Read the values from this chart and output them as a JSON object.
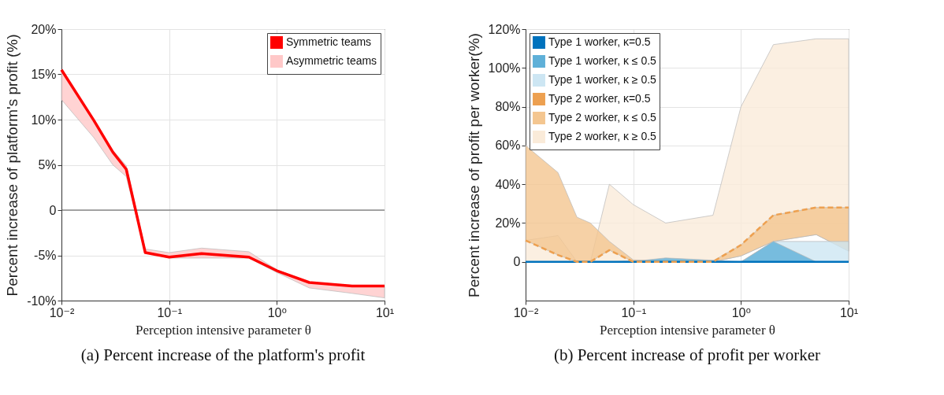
{
  "chart_data": [
    {
      "type": "line",
      "title": "(a) Percent increase of the platform's profit",
      "xlabel": "Perception intensive parameter θ",
      "ylabel": "Percent increase of platform's profit (%)",
      "x": [
        0.01,
        0.02,
        0.03,
        0.04,
        0.06,
        0.1,
        0.2,
        0.55,
        1,
        2,
        5,
        10
      ],
      "series": [
        {
          "name": "Symmetric teams",
          "color": "#ff0000",
          "values": [
            15.5,
            9.9,
            6.4,
            4.5,
            -4.7,
            -5.2,
            -4.8,
            -5.2,
            -6.7,
            -8.0,
            -8.4,
            -8.4
          ]
        },
        {
          "name": "Asymmetric teams",
          "color": "#ffc8c8",
          "values": [
            null,
            null,
            null,
            null,
            null,
            null,
            null,
            null,
            null,
            null,
            null,
            null
          ],
          "lower": [
            12.2,
            8.0,
            5.0,
            3.7,
            -4.7,
            -5.3,
            -5.3,
            -5.3,
            -6.9,
            -8.6,
            -9.2,
            -9.7
          ],
          "upper": [
            15.5,
            9.9,
            6.6,
            4.9,
            -4.3,
            -4.7,
            -4.2,
            -4.6,
            -6.6,
            -8.0,
            -8.4,
            -8.4
          ]
        }
      ],
      "log": "x",
      "xlim": [
        0.01,
        10
      ],
      "ylim": [
        -10,
        20
      ],
      "xticks": [
        {
          "value": 0.01,
          "label": "10⁻²"
        },
        {
          "value": 0.1,
          "label": "10⁻¹"
        },
        {
          "value": 1,
          "label": "10⁰"
        },
        {
          "value": 10,
          "label": "10¹"
        }
      ],
      "yticks": [
        {
          "value": -10,
          "label": "-10%"
        },
        {
          "value": -5,
          "label": "-5%"
        },
        0,
        {
          "value": 5,
          "label": "5%"
        },
        {
          "value": 10,
          "label": "10%"
        },
        {
          "value": 15,
          "label": "15%"
        },
        {
          "value": 20,
          "label": "20%"
        }
      ],
      "ref_lines": [
        {
          "axis": "y",
          "value": 0,
          "label": null,
          "color": "#555555"
        }
      ],
      "grid": true,
      "legend": "top right",
      "line_style": "solid",
      "marker": "none"
    },
    {
      "type": "line",
      "title": "(b) Percent increase of profit per worker",
      "xlabel": "Perception intensive parameter θ",
      "ylabel": "Percent increase of profit per worker(%)",
      "x": [
        0.01,
        0.02,
        0.03,
        0.04,
        0.06,
        0.1,
        0.2,
        0.55,
        1,
        2,
        5,
        10
      ],
      "series": [
        {
          "name": "Type 1 worker, κ=0.5",
          "color": "#0072bd",
          "line_style": "solid",
          "values": [
            0,
            0,
            0,
            0,
            0,
            0,
            0,
            0,
            0,
            0,
            0,
            0
          ]
        },
        {
          "name": "Type 1 worker, κ ≤ 0.5",
          "color": "#5fb0d8",
          "values": [
            null,
            null,
            null,
            null,
            null,
            null,
            null,
            null,
            null,
            null,
            null,
            null
          ],
          "lower": [
            0,
            0,
            0,
            0,
            0,
            0,
            0,
            0,
            0,
            0,
            0,
            0
          ],
          "upper": [
            0,
            0,
            0,
            0,
            0,
            0.2,
            2,
            0.8,
            0,
            10.5,
            0,
            0
          ]
        },
        {
          "name": "Type 1 worker, κ ≥ 0.5",
          "color": "#cde6f3",
          "values": [
            null,
            null,
            null,
            null,
            null,
            null,
            null,
            null,
            null,
            null,
            null,
            null
          ],
          "lower": [
            null,
            null,
            null,
            null,
            null,
            null,
            null,
            null,
            0,
            0,
            0,
            0
          ],
          "upper": [
            null,
            null,
            null,
            null,
            null,
            null,
            null,
            null,
            0,
            10.5,
            10.5,
            10.5
          ]
        },
        {
          "name": "Type 2 worker, κ=0.5",
          "color": "#eda050",
          "line_style": "dashed",
          "values": [
            11,
            3.5,
            0,
            0,
            6,
            0,
            0,
            0,
            8.7,
            24,
            28,
            28
          ]
        },
        {
          "name": "Type 2 worker, κ ≤ 0.5",
          "color": "#f4c690",
          "values": [
            null,
            null,
            null,
            null,
            null,
            null,
            null,
            null,
            null,
            null,
            null,
            null
          ],
          "lower": [
            11,
            3.5,
            0,
            0,
            6,
            0,
            0,
            0,
            3,
            10.5,
            14,
            5.5
          ],
          "upper": [
            60,
            46,
            23,
            20,
            10.5,
            1,
            0.5,
            0.5,
            8.7,
            24,
            28,
            28
          ]
        },
        {
          "name": "Type 2 worker, κ ≥ 0.5",
          "color": "#faebd9",
          "values": [
            null,
            null,
            null,
            null,
            null,
            null,
            null,
            null,
            null,
            null,
            null,
            null
          ],
          "lower": [
            0,
            0,
            0,
            0,
            0,
            0.5,
            0,
            0,
            3,
            10.5,
            14,
            5.5
          ],
          "upper": [
            11,
            13.5,
            0,
            0,
            40,
            29.5,
            20,
            24,
            80,
            112,
            115,
            115
          ]
        }
      ],
      "log": "x",
      "xlim": [
        0.01,
        10
      ],
      "ylim": [
        -20,
        120
      ],
      "xticks": [
        {
          "value": 0.01,
          "label": "10⁻²"
        },
        {
          "value": 0.1,
          "label": "10⁻¹"
        },
        {
          "value": 1,
          "label": "10⁰"
        },
        {
          "value": 10,
          "label": "10¹"
        }
      ],
      "yticks": [
        0,
        {
          "value": 20,
          "label": "20%"
        },
        {
          "value": 40,
          "label": "40%"
        },
        {
          "value": 60,
          "label": "60%"
        },
        {
          "value": 80,
          "label": "80%"
        },
        {
          "value": 100,
          "label": "100%"
        },
        {
          "value": 120,
          "label": "120%"
        }
      ],
      "grid": true,
      "legend": "top left",
      "marker": "none"
    }
  ]
}
